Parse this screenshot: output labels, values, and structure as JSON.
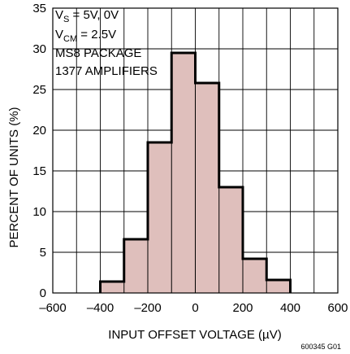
{
  "chart_data": {
    "type": "bar",
    "histogram": true,
    "bin_edges": [
      -400,
      -300,
      -200,
      -100,
      0,
      100,
      200,
      300,
      400
    ],
    "values": [
      1.4,
      6.6,
      18.5,
      29.5,
      25.8,
      13.0,
      4.2,
      1.6
    ],
    "xlabel": "INPUT OFFSET VOLTAGE (µV)",
    "ylabel": "PERCENT OF UNITS (%)",
    "xlim": [
      -600,
      600
    ],
    "ylim": [
      0,
      35
    ],
    "xticks": [
      "–600",
      "–400",
      "–200",
      "0",
      "200",
      "400",
      "600"
    ],
    "yticks": [
      "0",
      "5",
      "10",
      "15",
      "20",
      "25",
      "30",
      "35"
    ],
    "grid": true,
    "annotations": {
      "vs_main": "V",
      "vs_sub": "S",
      "vs_rest": " = 5V, 0V",
      "vcm_main": "V",
      "vcm_sub": "CM",
      "vcm_rest": " = 2.5V",
      "package": "MS8 PACKAGE",
      "amplifiers": "1377 AMPLIFIERS"
    },
    "figure_code": "600345 G01",
    "colors": {
      "fill": "#dfbfbc",
      "edge": "#000000",
      "grid": "#000000"
    }
  }
}
